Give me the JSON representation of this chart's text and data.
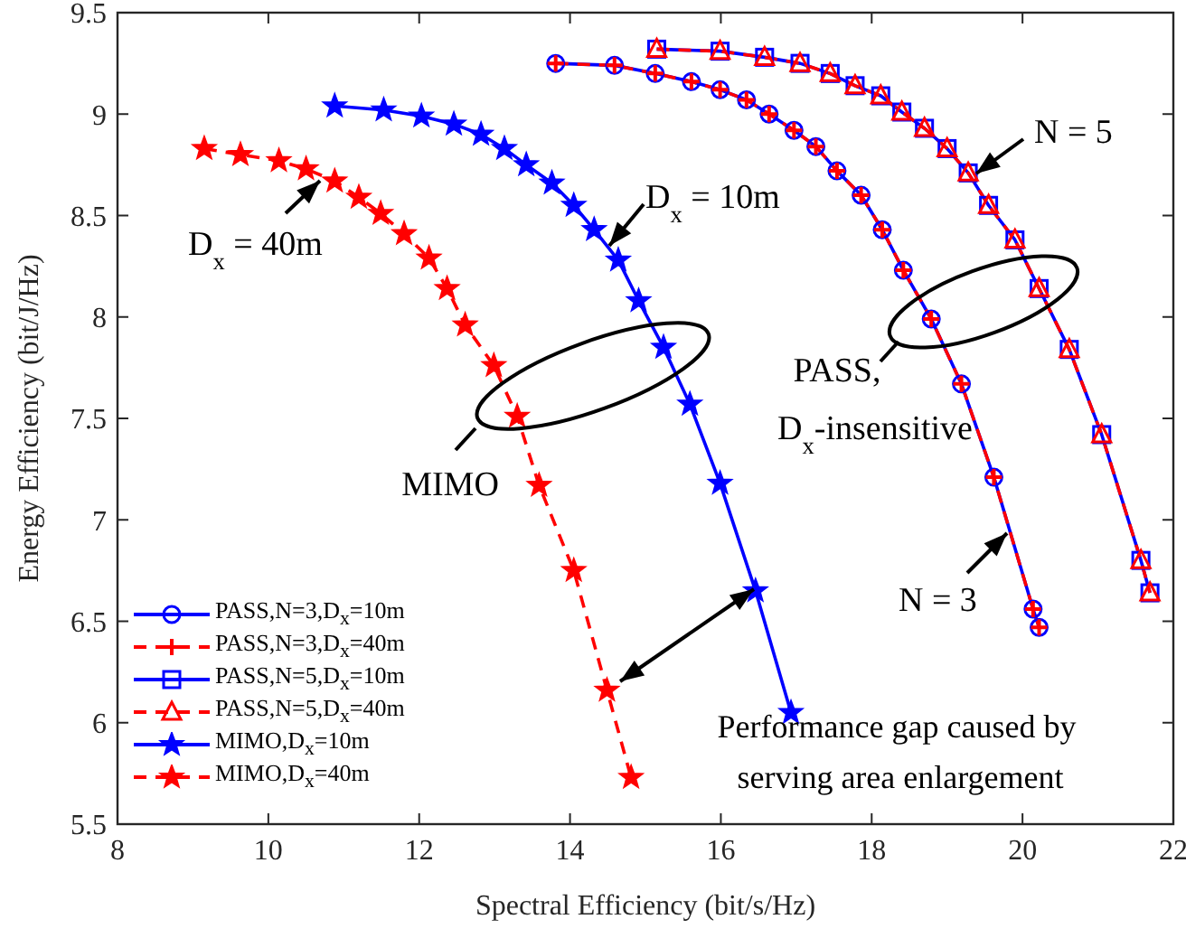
{
  "chart_data": {
    "type": "line",
    "xlabel": "Spectral Efficiency (bit/s/Hz)",
    "ylabel": "Energy Efficiency (bit/J/Hz)",
    "xlim": [
      8,
      22
    ],
    "xticks": [
      8,
      10,
      12,
      14,
      16,
      18,
      20,
      22
    ],
    "ylim": [
      5.5,
      9.5
    ],
    "yticks": [
      5.5,
      6,
      6.5,
      7,
      7.5,
      8,
      8.5,
      9,
      9.5
    ],
    "legend": "bottom left",
    "series": [
      {
        "name": "PASS,N=3,D$_{x}$=10m",
        "color": "#0000ff",
        "marker": "circle",
        "line_style": "solid",
        "x": [
          13.81,
          14.59,
          15.13,
          15.61,
          15.99,
          16.34,
          16.64,
          16.97,
          17.26,
          17.54,
          17.86,
          18.14,
          18.42,
          18.79,
          19.19,
          19.62,
          20.14,
          20.22
        ],
        "values": [
          9.25,
          9.24,
          9.2,
          9.16,
          9.12,
          9.07,
          9.0,
          8.92,
          8.84,
          8.72,
          8.6,
          8.43,
          8.23,
          7.99,
          7.67,
          7.21,
          6.56,
          6.47
        ]
      },
      {
        "name": "PASS,N=3,D$_{x}$=40m",
        "color": "#ff0000",
        "marker": "cross",
        "line_style": "dashed",
        "x": [
          13.81,
          14.59,
          15.13,
          15.61,
          15.99,
          16.34,
          16.64,
          16.97,
          17.26,
          17.54,
          17.86,
          18.14,
          18.42,
          18.79,
          19.19,
          19.62,
          20.14,
          20.22
        ],
        "values": [
          9.25,
          9.24,
          9.2,
          9.16,
          9.12,
          9.07,
          9.0,
          8.92,
          8.84,
          8.72,
          8.6,
          8.43,
          8.23,
          7.99,
          7.67,
          7.21,
          6.56,
          6.47
        ]
      },
      {
        "name": "PASS,N=5,D$_{x}$=10m",
        "color": "#0000ff",
        "marker": "square",
        "line_style": "solid",
        "x": [
          15.15,
          15.99,
          16.58,
          17.05,
          17.45,
          17.78,
          18.12,
          18.4,
          18.7,
          19.0,
          19.28,
          19.55,
          19.9,
          20.22,
          20.62,
          21.05,
          21.57,
          21.69
        ],
        "values": [
          9.32,
          9.31,
          9.28,
          9.25,
          9.2,
          9.14,
          9.09,
          9.01,
          8.93,
          8.83,
          8.71,
          8.55,
          8.38,
          8.14,
          7.84,
          7.42,
          6.8,
          6.64
        ]
      },
      {
        "name": "PASS,N=5,D$_{x}$=40m",
        "color": "#ff0000",
        "marker": "triangle",
        "line_style": "dashed",
        "x": [
          15.15,
          15.99,
          16.58,
          17.05,
          17.45,
          17.78,
          18.12,
          18.4,
          18.7,
          19.0,
          19.28,
          19.55,
          19.9,
          20.22,
          20.62,
          21.05,
          21.57,
          21.69
        ],
        "values": [
          9.32,
          9.31,
          9.28,
          9.25,
          9.2,
          9.14,
          9.09,
          9.01,
          8.93,
          8.83,
          8.71,
          8.55,
          8.38,
          8.14,
          7.84,
          7.42,
          6.8,
          6.64
        ]
      },
      {
        "name": "MIMO,D$_{x}$=10m",
        "color": "#0000ff",
        "marker": "star",
        "line_style": "solid",
        "x": [
          10.88,
          11.53,
          12.03,
          12.46,
          12.82,
          13.13,
          13.42,
          13.76,
          14.05,
          14.32,
          14.64,
          14.91,
          15.24,
          15.59,
          15.99,
          16.46,
          16.93
        ],
        "values": [
          9.04,
          9.02,
          8.99,
          8.95,
          8.9,
          8.83,
          8.75,
          8.66,
          8.55,
          8.43,
          8.28,
          8.08,
          7.85,
          7.57,
          7.18,
          6.65,
          6.05
        ]
      },
      {
        "name": "MIMO,D$_{x}$=40m",
        "color": "#ff0000",
        "marker": "star",
        "line_style": "dashed",
        "x": [
          9.15,
          9.63,
          10.14,
          10.5,
          10.88,
          11.2,
          11.49,
          11.8,
          12.13,
          12.37,
          12.61,
          12.99,
          13.3,
          13.59,
          14.05,
          14.49,
          14.81
        ],
        "values": [
          8.83,
          8.8,
          8.77,
          8.73,
          8.67,
          8.59,
          8.51,
          8.41,
          8.29,
          8.14,
          7.96,
          7.76,
          7.51,
          7.17,
          6.75,
          6.16,
          5.73
        ]
      }
    ],
    "annotations": [
      "D$_{x}$ = 40m",
      "D$_{x}$ = 10m",
      "N = 5",
      "N = 3",
      "PASS,",
      "D$_{x}$-insensitive",
      "MIMO",
      "Performance gap caused by",
      "serving area enlargement"
    ]
  }
}
